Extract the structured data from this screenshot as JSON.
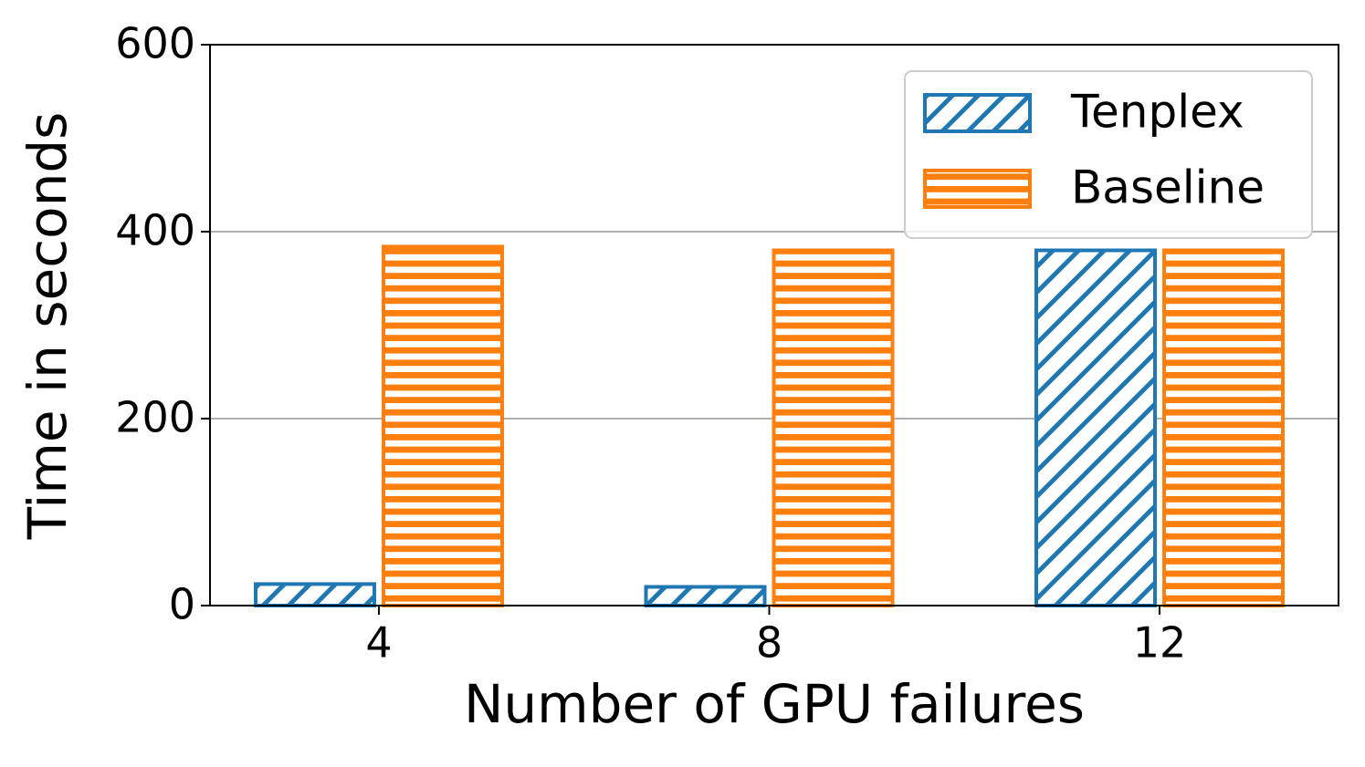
{
  "chart_data": {
    "type": "bar",
    "xlabel": "Number of GPU failures",
    "ylabel": "Time in seconds",
    "categories": [
      "4",
      "8",
      "12"
    ],
    "series": [
      {
        "name": "Tenplex",
        "color": "#1f77b4",
        "hatch": "//",
        "values": [
          23,
          20,
          380
        ]
      },
      {
        "name": "Baseline",
        "color": "#ff7f0e",
        "hatch": "-",
        "values": [
          384,
          380,
          380
        ]
      }
    ],
    "ylim": [
      0,
      600
    ],
    "yticks": [
      0,
      200,
      400,
      600
    ],
    "grid": true,
    "legend": "upper right"
  }
}
